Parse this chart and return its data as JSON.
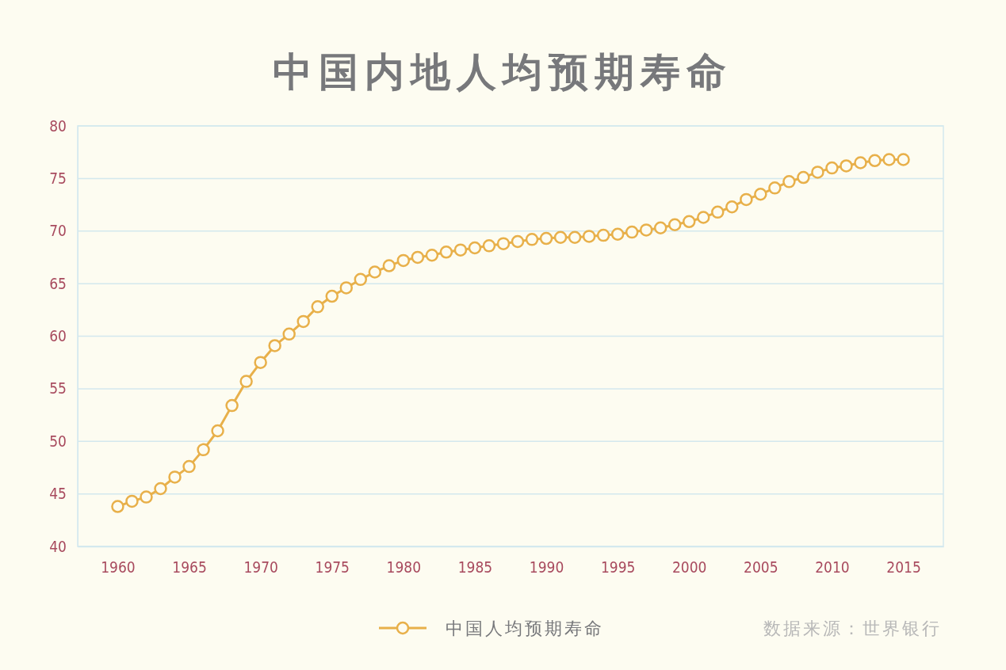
{
  "chart_data": {
    "type": "line",
    "title": "中国内地人均预期寿命",
    "x": [
      1960,
      1961,
      1962,
      1963,
      1964,
      1965,
      1966,
      1967,
      1968,
      1969,
      1970,
      1971,
      1972,
      1973,
      1974,
      1975,
      1976,
      1977,
      1978,
      1979,
      1980,
      1981,
      1982,
      1983,
      1984,
      1985,
      1986,
      1987,
      1988,
      1989,
      1990,
      1991,
      1992,
      1993,
      1994,
      1995,
      1996,
      1997,
      1998,
      1999,
      2000,
      2001,
      2002,
      2003,
      2004,
      2005,
      2006,
      2007,
      2008,
      2009,
      2010,
      2011,
      2012,
      2013,
      2014,
      2015
    ],
    "series": [
      {
        "name": "中国人均预期寿命",
        "color": "#e8b04a",
        "values": [
          43.8,
          44.3,
          44.7,
          45.5,
          46.6,
          47.6,
          49.2,
          51.0,
          53.4,
          55.7,
          57.5,
          59.1,
          60.2,
          61.4,
          62.8,
          63.8,
          64.6,
          65.4,
          66.1,
          66.7,
          67.2,
          67.5,
          67.7,
          68.0,
          68.2,
          68.4,
          68.6,
          68.8,
          69.0,
          69.2,
          69.3,
          69.4,
          69.4,
          69.5,
          69.6,
          69.7,
          69.9,
          70.1,
          70.3,
          70.6,
          70.9,
          71.3,
          71.8,
          72.3,
          73.0,
          73.5,
          74.1,
          74.7,
          75.1,
          75.6,
          76.0,
          76.2,
          76.5,
          76.7,
          76.8,
          76.8
        ]
      }
    ],
    "xlim": [
      1957.2,
      2017.8
    ],
    "xticks": [
      1960,
      1965,
      1970,
      1975,
      1980,
      1985,
      1990,
      1995,
      2000,
      2005,
      2010,
      2015
    ],
    "ylim": [
      40,
      80
    ],
    "yticks": [
      40,
      45,
      50,
      55,
      60,
      65,
      70,
      75,
      80
    ],
    "grid": "y",
    "legend": "bottom",
    "marker": "circle",
    "line_style": "solid",
    "annotations": [
      "数据来源：世界银行"
    ]
  }
}
